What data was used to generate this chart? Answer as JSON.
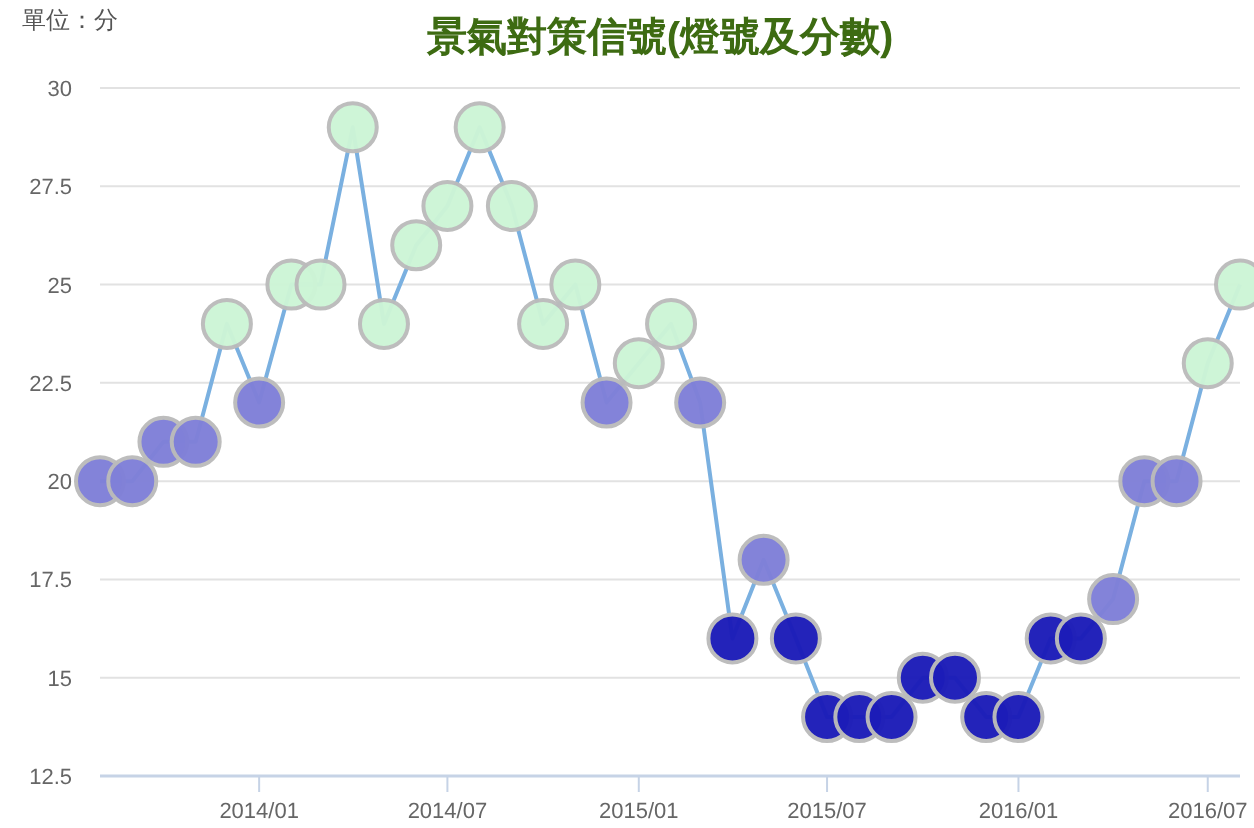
{
  "chart_data": {
    "type": "line",
    "title": "景氣對策信號(燈號及分數)",
    "ylabel": "單位：分",
    "x": [
      "2013-08",
      "2013-09",
      "2013-10",
      "2013-11",
      "2013-12",
      "2014-01",
      "2014-02",
      "2014-03",
      "2014-04",
      "2014-05",
      "2014-06",
      "2014-07",
      "2014-08",
      "2014-09",
      "2014-10",
      "2014-11",
      "2014-12",
      "2015-01",
      "2015-02",
      "2015-03",
      "2015-04",
      "2015-05",
      "2015-06",
      "2015-07",
      "2015-08",
      "2015-09",
      "2015-10",
      "2015-11",
      "2015-12",
      "2016-01",
      "2016-02",
      "2016-03",
      "2016-04",
      "2016-05",
      "2016-06",
      "2016-07",
      "2016-08"
    ],
    "series": [
      {
        "color": "#7ab0e0",
        "values": [
          20,
          20,
          21,
          21,
          24,
          22,
          25,
          25,
          29,
          24,
          26,
          27,
          29,
          27,
          24,
          25,
          22,
          23,
          24,
          22,
          16,
          18,
          16,
          14,
          14,
          14,
          15,
          15,
          14,
          14,
          16,
          16,
          17,
          20,
          20,
          23,
          25
        ],
        "colors": [
          "#8080d8",
          "#8080d8",
          "#8080d8",
          "#8080d8",
          "#cdf5d6",
          "#8080d8",
          "#cdf5d6",
          "#cdf5d6",
          "#cdf5d6",
          "#cdf5d6",
          "#cdf5d6",
          "#cdf5d6",
          "#cdf5d6",
          "#cdf5d6",
          "#cdf5d6",
          "#cdf5d6",
          "#8080d8",
          "#cdf5d6",
          "#cdf5d6",
          "#8080d8",
          "#1c1cb8",
          "#8080d8",
          "#1c1cb8",
          "#1c1cb8",
          "#1c1cb8",
          "#1c1cb8",
          "#1c1cb8",
          "#1c1cb8",
          "#1c1cb8",
          "#1c1cb8",
          "#1c1cb8",
          "#1c1cb8",
          "#8080d8",
          "#8080d8",
          "#8080d8",
          "#cdf5d6",
          "#cdf5d6"
        ]
      }
    ],
    "xlim": [
      "2013-08",
      "2016-08"
    ],
    "xticks": [
      {
        "value": "2014-01",
        "label": "2014/01"
      },
      {
        "value": "2014-07",
        "label": "2014/07"
      },
      {
        "value": "2015-01",
        "label": "2015/01"
      },
      {
        "value": "2015-07",
        "label": "2015/07"
      },
      {
        "value": "2016-01",
        "label": "2016/01"
      },
      {
        "value": "2016-07",
        "label": "2016/07"
      }
    ],
    "ylim": [
      12.5,
      30
    ],
    "yticks": [
      12.5,
      15,
      17.5,
      20,
      22.5,
      25,
      27.5,
      30
    ],
    "grid": "y",
    "marker": "circle"
  }
}
